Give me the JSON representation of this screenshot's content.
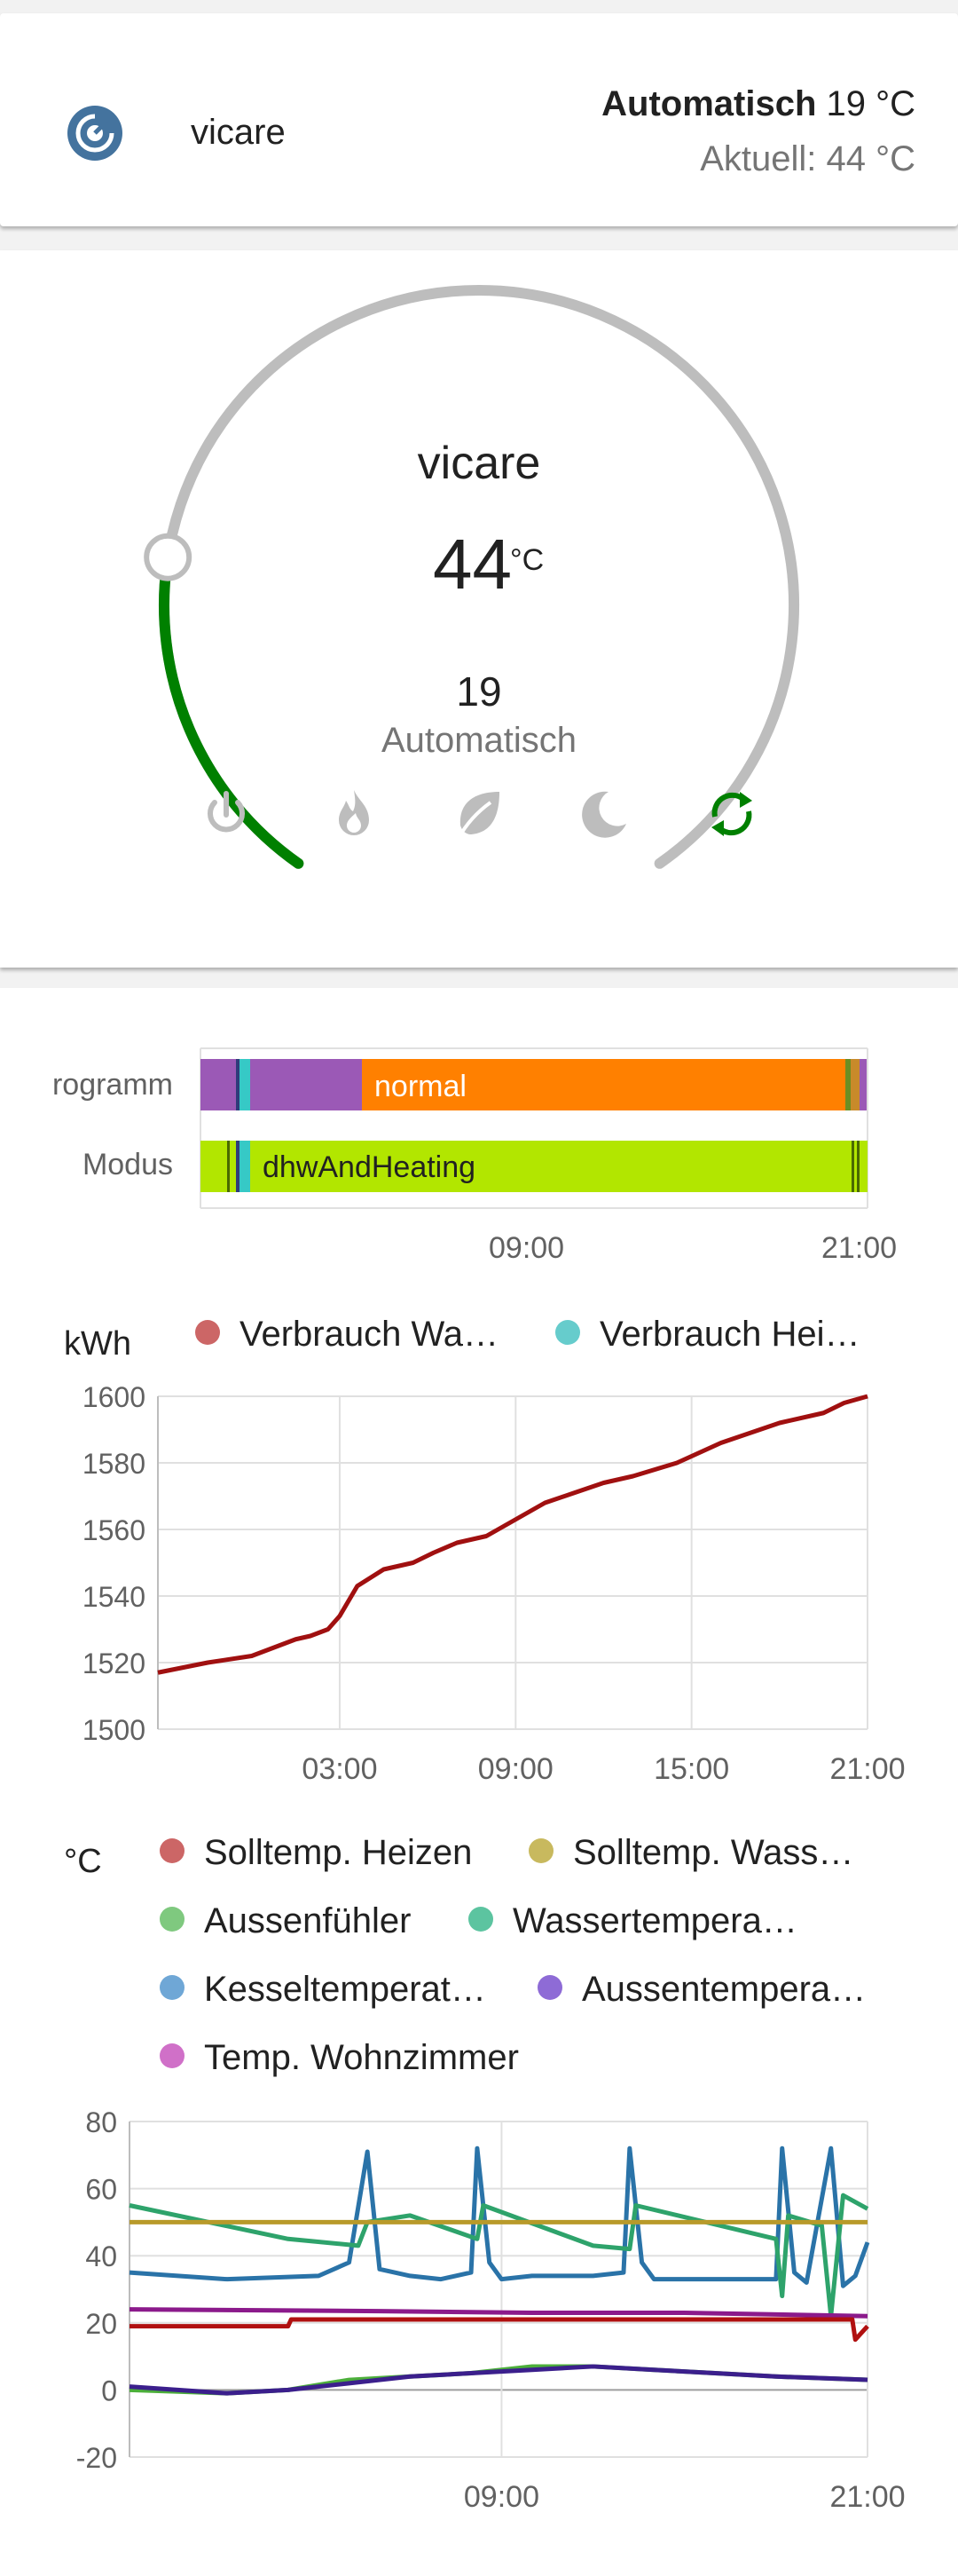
{
  "header": {
    "entity_name": "vicare",
    "hvac_mode": "Automatisch",
    "target_temp": "19 °C",
    "current_label": "Aktuell: 44 °C"
  },
  "thermostat": {
    "name": "vicare",
    "current_temp": "44",
    "unit": "°C",
    "target_temp": "19",
    "mode": "Automatisch",
    "dial_target_fraction": 0.22,
    "modes": [
      {
        "icon": "power-icon",
        "active": false
      },
      {
        "icon": "fire-icon",
        "active": false
      },
      {
        "icon": "leaf-icon",
        "active": false
      },
      {
        "icon": "moon-icon",
        "active": false
      },
      {
        "icon": "auto-cycle-icon",
        "active": true
      }
    ],
    "colors": {
      "active": "#008000",
      "inactive": "#bdbdbd"
    }
  },
  "timeline": {
    "rows": [
      {
        "label": "rogramm",
        "main_label": "normal",
        "main_color": "#ff8000",
        "accent_color": "#9b59b6"
      },
      {
        "label": "Modus",
        "main_label": "dhwAndHeating",
        "main_color": "#b2e600",
        "accent_color": "#36c9c6"
      }
    ],
    "x_ticks": [
      "09:00",
      "21:00"
    ]
  },
  "energy_chart": {
    "unit": "kWh",
    "legend": [
      {
        "name": "Verbrauch Wa…",
        "color": "#cc6666"
      },
      {
        "name": "Verbrauch Hei…",
        "color": "#66cccc"
      }
    ],
    "y_ticks": [
      "1600",
      "1580",
      "1560",
      "1540",
      "1520",
      "1500"
    ],
    "x_ticks": [
      "03:00",
      "09:00",
      "15:00",
      "21:00"
    ]
  },
  "temp_chart": {
    "unit": "°C",
    "legend": [
      {
        "name": "Solltemp. Heizen",
        "color": "#cc6666"
      },
      {
        "name": "Solltemp. Wass…",
        "color": "#c8b95e"
      },
      {
        "name": "Aussenfühler",
        "color": "#7fc97f"
      },
      {
        "name": "Wassertempera…",
        "color": "#5cc4a0"
      },
      {
        "name": "Kesseltemperat…",
        "color": "#6fa7d6"
      },
      {
        "name": "Aussentempera…",
        "color": "#8e6bd6"
      },
      {
        "name": "Temp. Wohnzimmer",
        "color": "#d070c8"
      }
    ],
    "y_ticks": [
      "80",
      "60",
      "40",
      "20",
      "0",
      "-20"
    ],
    "x_ticks": [
      "09:00",
      "21:00"
    ]
  },
  "chart_data": [
    {
      "type": "line",
      "ylabel": "kWh",
      "ylim": [
        1500,
        1600
      ],
      "xlim": [
        -3.2,
        21
      ],
      "grid": true,
      "legend": "top",
      "x_tick_labels": [
        "03:00",
        "09:00",
        "15:00",
        "21:00"
      ],
      "series": [
        {
          "name": "Verbrauch Wa…",
          "color": "#a01010",
          "x": [
            -3.2,
            -1.5,
            0,
            1.5,
            2,
            2.6,
            3,
            3.6,
            4.5,
            5.5,
            6.2,
            7,
            8,
            9,
            10,
            11,
            12,
            13,
            14.5,
            16,
            18,
            19.5,
            20.2,
            21
          ],
          "y": [
            1517,
            1520,
            1522,
            1527,
            1528,
            1530,
            1534,
            1543,
            1548,
            1550,
            1553,
            1556,
            1558,
            1563,
            1568,
            1571,
            1574,
            1576,
            1580,
            1586,
            1592,
            1595,
            1598,
            1600
          ]
        }
      ]
    },
    {
      "type": "line",
      "ylabel": "°C",
      "ylim": [
        -20,
        80
      ],
      "xlim": [
        -3.2,
        21
      ],
      "grid": true,
      "legend": "top",
      "x_tick_labels": [
        "09:00",
        "21:00"
      ],
      "series": [
        {
          "name": "Kesseltemperat…",
          "color": "#2a73a8",
          "x": [
            -3.2,
            0,
            3,
            4,
            4.6,
            5,
            6,
            7,
            8,
            8.2,
            8.6,
            9,
            10,
            12,
            13,
            13.2,
            13.6,
            14,
            16,
            18,
            18.2,
            18.6,
            19,
            19.8,
            20.2,
            20.6,
            21
          ],
          "y": [
            35,
            33,
            34,
            38,
            71,
            36,
            34,
            33,
            35,
            72,
            38,
            33,
            34,
            34,
            35,
            72,
            38,
            33,
            33,
            33,
            72,
            35,
            32,
            72,
            31,
            34,
            44
          ]
        },
        {
          "name": "Wassertempera…",
          "color": "#2ea36b",
          "x": [
            -3.2,
            2,
            4.3,
            4.6,
            6,
            8.2,
            8.4,
            12,
            13.2,
            13.4,
            18,
            18.2,
            18.4,
            19.5,
            19.8,
            20.2,
            21
          ],
          "y": [
            55,
            45,
            43,
            50,
            52,
            45,
            55,
            43,
            42,
            55,
            45,
            28,
            52,
            49,
            22,
            58,
            54
          ]
        },
        {
          "name": "Solltemp. Wass…",
          "color": "#b89a2a",
          "x": [
            -3.2,
            21
          ],
          "y": [
            50,
            50
          ]
        },
        {
          "name": "Temp. Wohnzimmer",
          "color": "#8b1a8b",
          "x": [
            -3.2,
            5,
            10,
            15,
            21
          ],
          "y": [
            24,
            23.5,
            23,
            23,
            22
          ]
        },
        {
          "name": "Solltemp. Heizen",
          "color": "#b01010",
          "x": [
            -3.2,
            2,
            2.1,
            20.5,
            20.6,
            21
          ],
          "y": [
            19,
            19,
            21,
            21,
            15,
            19
          ]
        },
        {
          "name": "Aussenfühler",
          "color": "#4caf3a",
          "x": [
            -3.2,
            0,
            2,
            4,
            6,
            8,
            10,
            12,
            14,
            16,
            18,
            21
          ],
          "y": [
            0,
            -1,
            0,
            3,
            4,
            5,
            7,
            7,
            6,
            5,
            4,
            3
          ]
        },
        {
          "name": "Aussentempera…",
          "color": "#3b1f8c",
          "x": [
            -3.2,
            0,
            2,
            4,
            6,
            8,
            10,
            12,
            14,
            16,
            18,
            21
          ],
          "y": [
            1,
            -1,
            0,
            2,
            4,
            5,
            6,
            7,
            6,
            5,
            4,
            3
          ]
        }
      ]
    }
  ]
}
